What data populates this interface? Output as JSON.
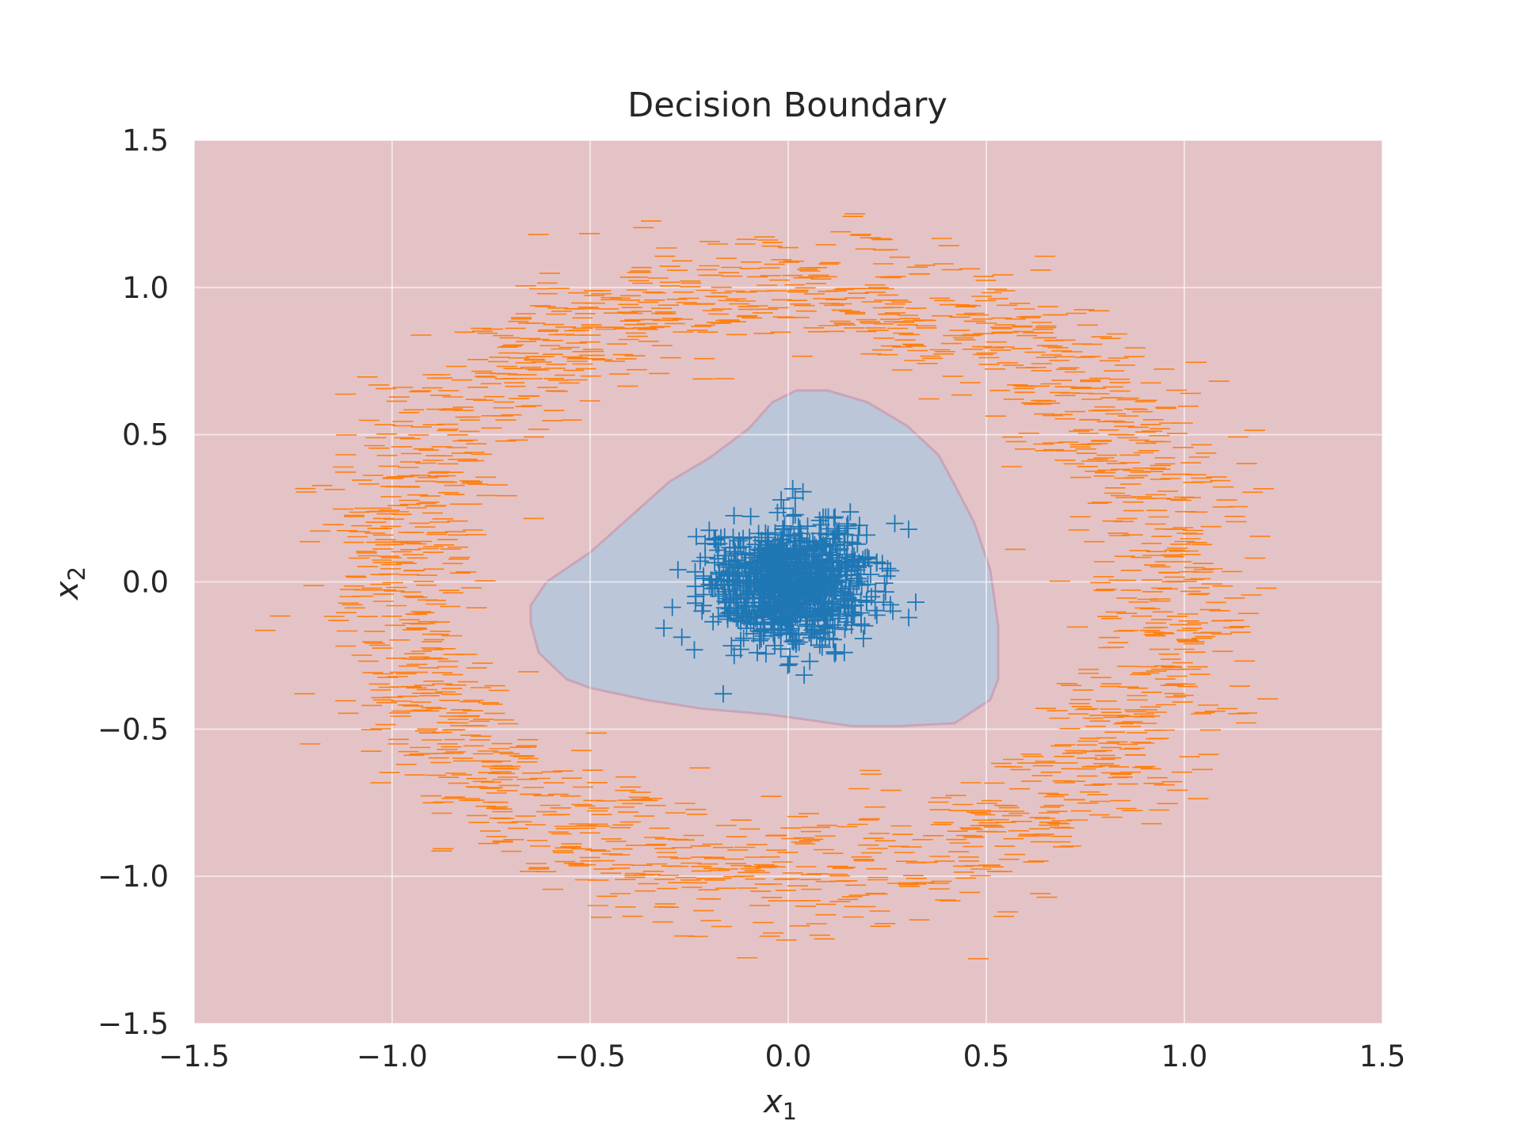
{
  "chart_data": {
    "type": "scatter",
    "title": "Decision Boundary",
    "xlabel": "x",
    "xlabel_subscript": "1",
    "ylabel": "x",
    "ylabel_subscript": "2",
    "xlim": [
      -1.5,
      1.5
    ],
    "ylim": [
      -1.5,
      1.5
    ],
    "x_ticks": [
      -1.5,
      -1.0,
      -0.5,
      0.0,
      0.5,
      1.0,
      1.5
    ],
    "x_tick_labels": [
      "−1.5",
      "−1.0",
      "−0.5",
      "0.0",
      "0.5",
      "1.0",
      "1.5"
    ],
    "y_ticks": [
      -1.5,
      -1.0,
      -0.5,
      0.0,
      0.5,
      1.0,
      1.5
    ],
    "y_tick_labels": [
      "−1.5",
      "−1.0",
      "−0.5",
      "0.0",
      "0.5",
      "1.0",
      "1.5"
    ],
    "grid": true,
    "background_region": {
      "class": "outer",
      "color": "#e4c3c7"
    },
    "decision_region": {
      "class": "inner",
      "color": "#bcc6d9",
      "boundary_color": "#c9a4b9",
      "polygon": [
        [
          0.02,
          0.65
        ],
        [
          0.1,
          0.65
        ],
        [
          0.2,
          0.61
        ],
        [
          0.3,
          0.53
        ],
        [
          0.38,
          0.43
        ],
        [
          0.42,
          0.33
        ],
        [
          0.47,
          0.2
        ],
        [
          0.51,
          0.04
        ],
        [
          0.53,
          -0.15
        ],
        [
          0.53,
          -0.33
        ],
        [
          0.51,
          -0.4
        ],
        [
          0.42,
          -0.48
        ],
        [
          0.28,
          -0.49
        ],
        [
          0.16,
          -0.49
        ],
        [
          0.06,
          -0.47
        ],
        [
          -0.05,
          -0.45
        ],
        [
          -0.22,
          -0.43
        ],
        [
          -0.36,
          -0.4
        ],
        [
          -0.5,
          -0.36
        ],
        [
          -0.56,
          -0.33
        ],
        [
          -0.63,
          -0.24
        ],
        [
          -0.65,
          -0.14
        ],
        [
          -0.65,
          -0.08
        ],
        [
          -0.61,
          0.0
        ],
        [
          -0.5,
          0.1
        ],
        [
          -0.4,
          0.22
        ],
        [
          -0.3,
          0.34
        ],
        [
          -0.2,
          0.42
        ],
        [
          -0.1,
          0.52
        ],
        [
          -0.04,
          0.61
        ]
      ]
    },
    "series": [
      {
        "class": "outer",
        "marker": "_",
        "color": "#ff7f0e",
        "count": 2000,
        "distribution": "ring",
        "center": [
          0.0,
          0.0
        ],
        "radius_mean": 1.0,
        "radius_std": 0.1,
        "x_range": [
          -1.32,
          1.34
        ],
        "y_range": [
          -1.28,
          1.25
        ]
      },
      {
        "class": "inner",
        "marker": "+",
        "color": "#1f77b4",
        "count": 1000,
        "distribution": "gaussian",
        "center": [
          0.0,
          0.0
        ],
        "std": [
          0.1,
          0.1
        ],
        "x_range": [
          -0.39,
          0.4
        ],
        "y_range": [
          -0.38,
          0.42
        ]
      }
    ]
  }
}
